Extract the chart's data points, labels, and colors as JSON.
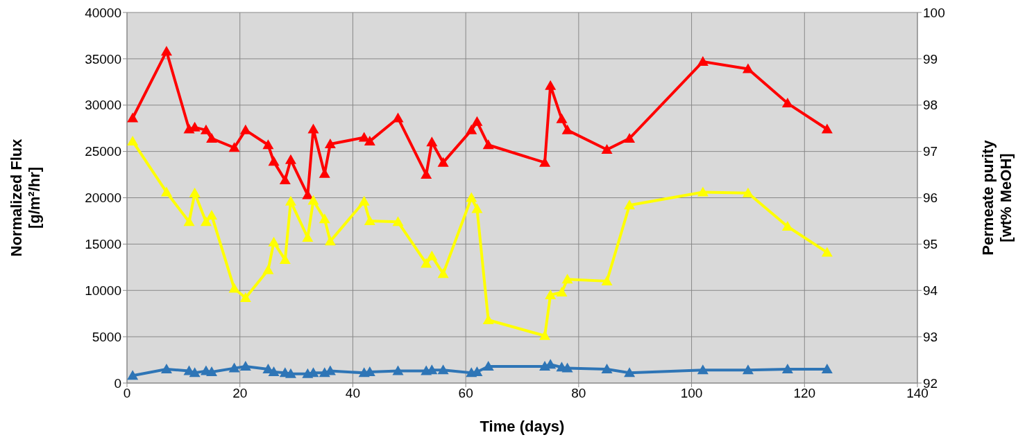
{
  "chart_data": {
    "type": "line",
    "xlabel": "Time (days)",
    "ylabel": "Normalized  Flux\n[g/m²/hr]",
    "y2label": "Permeate purity\n[wt% MeOH]",
    "x": [
      1,
      7,
      11,
      12,
      14,
      15,
      19,
      21,
      25,
      26,
      28,
      29,
      32,
      33,
      35,
      36,
      42,
      43,
      48,
      53,
      54,
      56,
      61,
      62,
      64,
      74,
      75,
      77,
      78,
      85,
      89,
      102,
      110,
      117,
      124
    ],
    "series": [
      {
        "color": "#ff0000",
        "axis": "y2",
        "values": [
          97.72,
          99.16,
          97.48,
          97.52,
          97.46,
          97.28,
          97.08,
          97.46,
          97.14,
          96.78,
          96.38,
          96.82,
          96.06,
          97.48,
          96.52,
          97.16,
          97.3,
          97.22,
          97.72,
          96.5,
          97.2,
          96.76,
          97.46,
          97.64,
          97.14,
          96.76,
          98.42,
          97.7,
          97.46,
          97.04,
          97.28,
          98.94,
          98.78,
          98.04,
          97.48
        ]
      },
      {
        "color": "#ffff00",
        "values": [
          26100,
          20600,
          17400,
          20500,
          17400,
          18100,
          10200,
          9200,
          12200,
          15200,
          13300,
          19600,
          15700,
          19700,
          17700,
          15300,
          19600,
          17500,
          17400,
          12900,
          13700,
          11800,
          20000,
          18800,
          6800,
          5100,
          9500,
          9800,
          11200,
          11000,
          19200,
          20600,
          20500,
          16900,
          14100
        ]
      },
      {
        "color": "#2e75b6",
        "values": [
          800,
          1500,
          1300,
          1100,
          1300,
          1200,
          1600,
          1800,
          1500,
          1200,
          1100,
          1000,
          1000,
          1100,
          1100,
          1300,
          1100,
          1200,
          1300,
          1300,
          1400,
          1400,
          1100,
          1200,
          1800,
          1800,
          2000,
          1700,
          1600,
          1500,
          1100,
          1400,
          1400,
          1500,
          1500
        ]
      }
    ],
    "xlim": [
      0,
      140
    ],
    "xticks": [
      0,
      20,
      40,
      60,
      80,
      100,
      120,
      140
    ],
    "ylim": [
      0,
      40000
    ],
    "yticks": [
      0,
      5000,
      10000,
      15000,
      20000,
      25000,
      30000,
      35000,
      40000
    ],
    "y2lim": [
      92,
      100
    ],
    "y2ticks": [
      92,
      93,
      94,
      95,
      96,
      97,
      98,
      99,
      100
    ],
    "grid": true,
    "marker": "triangle",
    "line_style": "solid"
  }
}
